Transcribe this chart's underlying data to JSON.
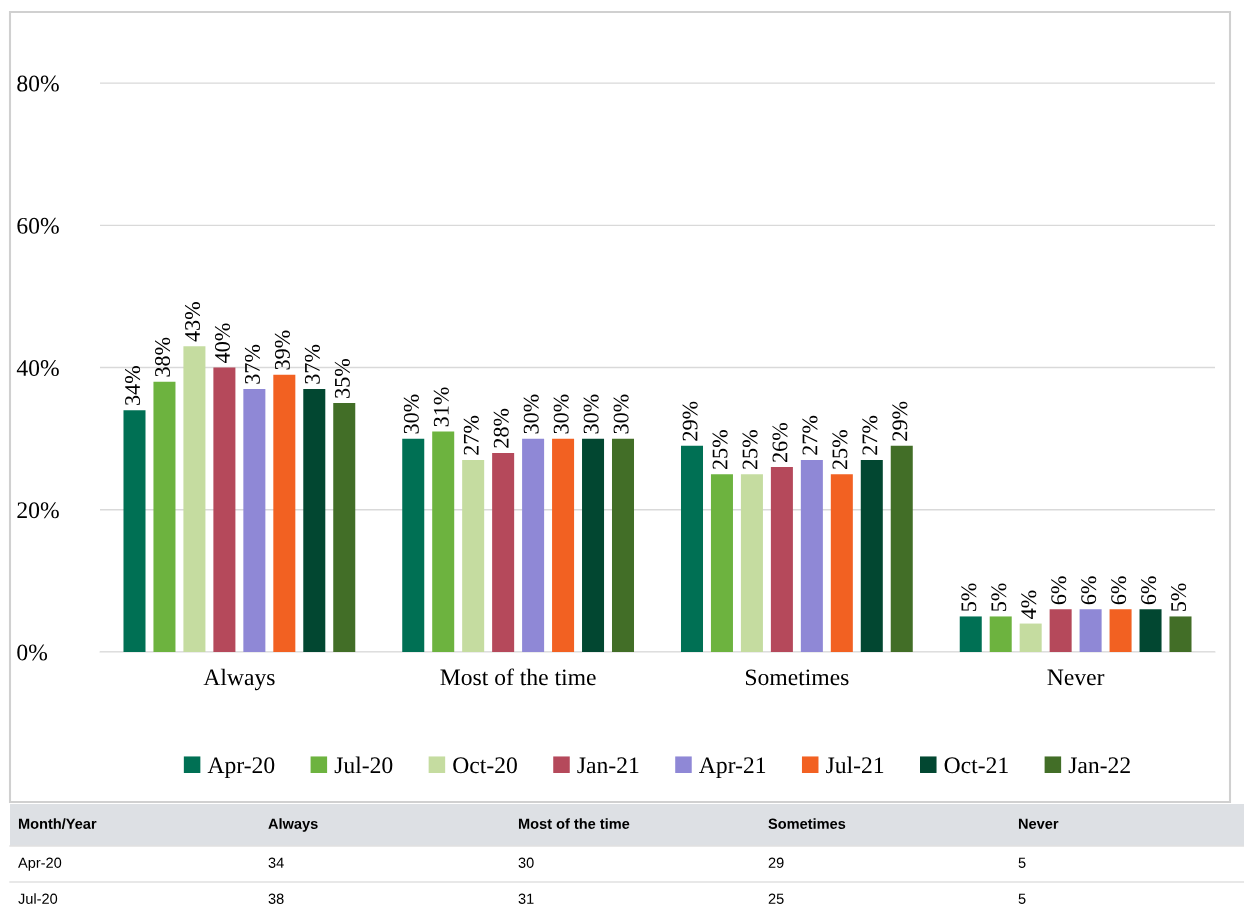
{
  "chart_data": {
    "type": "bar",
    "categories": [
      "Always",
      "Most of the time",
      "Sometimes",
      "Never"
    ],
    "series": [
      {
        "name": "Apr-20",
        "color": "#007054",
        "values": [
          34,
          30,
          29,
          5
        ],
        "value_labels": [
          "34%",
          "30%",
          "29%",
          "5%"
        ]
      },
      {
        "name": "Jul-20",
        "color": "#6db33f",
        "values": [
          38,
          31,
          25,
          5
        ],
        "value_labels": [
          "38%",
          "31%",
          "25%",
          "5%"
        ]
      },
      {
        "name": "Oct-20",
        "color": "#c5dca0",
        "values": [
          43,
          27,
          25,
          4
        ],
        "value_labels": [
          "43%",
          "27%",
          "25%",
          "4%"
        ]
      },
      {
        "name": "Jan-21",
        "color": "#b5495b",
        "values": [
          40,
          28,
          26,
          6
        ],
        "value_labels": [
          "40%",
          "28%",
          "26%",
          "6%"
        ]
      },
      {
        "name": "Apr-21",
        "color": "#8f88d6",
        "values": [
          37,
          30,
          27,
          6
        ],
        "value_labels": [
          "37%",
          "30%",
          "27%",
          "6%"
        ]
      },
      {
        "name": "Jul-21",
        "color": "#f26122",
        "values": [
          39,
          30,
          25,
          6
        ],
        "value_labels": [
          "39%",
          "30%",
          "25%",
          "6%"
        ]
      },
      {
        "name": "Oct-21",
        "color": "#024731",
        "values": [
          37,
          30,
          27,
          6
        ],
        "value_labels": [
          "37%",
          "30%",
          "27%",
          "6%"
        ]
      },
      {
        "name": "Jan-22",
        "color": "#426e27",
        "values": [
          35,
          30,
          29,
          5
        ],
        "value_labels": [
          "35%",
          "30%",
          "29%",
          "5%"
        ]
      }
    ],
    "ylim": [
      0,
      90
    ],
    "yticks": [
      {
        "value": 0,
        "label": "0%"
      },
      {
        "value": 20,
        "label": "20%"
      },
      {
        "value": 40,
        "label": "40%"
      },
      {
        "value": 60,
        "label": "60%"
      },
      {
        "value": 80,
        "label": "80%"
      }
    ],
    "grid": "y",
    "legend": "bottom",
    "annotations": [
      "Month/Year",
      "34",
      "30",
      "29",
      "5",
      "38",
      "31",
      "25",
      "5"
    ]
  }
}
